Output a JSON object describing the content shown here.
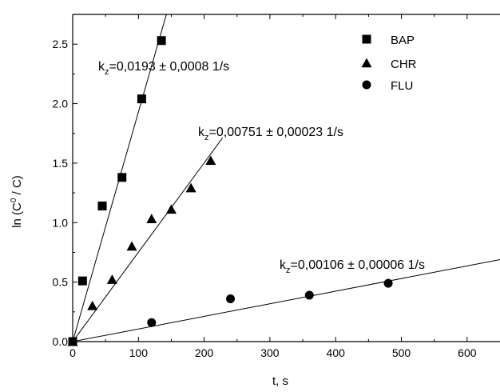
{
  "chart_data": {
    "type": "scatter",
    "xlabel": "t, s",
    "ylabel_main": "ln (C",
    "ylabel_sup": "0",
    "ylabel_tail": " / C)",
    "xlim": [
      0,
      650
    ],
    "ylim": [
      0,
      2.75
    ],
    "xticks": [
      0,
      100,
      200,
      300,
      400,
      500,
      600
    ],
    "xtick_labels": [
      "0",
      "100",
      "200",
      "300",
      "400",
      "500",
      "600"
    ],
    "yticks": [
      0.0,
      0.5,
      1.0,
      1.5,
      2.0,
      2.5
    ],
    "ytick_labels": [
      "0.0",
      "0.5",
      "1.0",
      "1.5",
      "2.0",
      "2.5"
    ],
    "grid": false,
    "legend_position": "top-right",
    "series": [
      {
        "name": "BAP",
        "marker": "square",
        "points": [
          [
            0,
            0
          ],
          [
            15,
            0.51
          ],
          [
            45,
            1.14
          ],
          [
            75,
            1.38
          ],
          [
            105,
            2.04
          ],
          [
            135,
            2.53
          ]
        ],
        "fit": {
          "slope": 0.0193,
          "x_end": 142.5
        },
        "annotation": {
          "k": "k",
          "sub": "z",
          "text": "=0,0193 ± 0,0008 1/s"
        }
      },
      {
        "name": "CHR",
        "marker": "triangle",
        "points": [
          [
            0,
            0
          ],
          [
            30,
            0.3
          ],
          [
            60,
            0.52
          ],
          [
            90,
            0.8
          ],
          [
            120,
            1.03
          ],
          [
            150,
            1.11
          ],
          [
            180,
            1.29
          ],
          [
            210,
            1.52
          ]
        ],
        "fit": {
          "slope": 0.00751,
          "x_end": 228
        },
        "annotation": {
          "k": "k",
          "sub": "z",
          "text": "=0,00751 ± 0,00023 1/s"
        }
      },
      {
        "name": "FLU",
        "marker": "circle",
        "points": [
          [
            0,
            0
          ],
          [
            120,
            0.16
          ],
          [
            240,
            0.36
          ],
          [
            360,
            0.39
          ],
          [
            480,
            0.49
          ]
        ],
        "fit": {
          "slope": 0.00106,
          "x_end": 650
        },
        "annotation": {
          "k": "k",
          "sub": "z",
          "text": "=0,00106 ± 0,00006 1/s"
        }
      }
    ]
  }
}
